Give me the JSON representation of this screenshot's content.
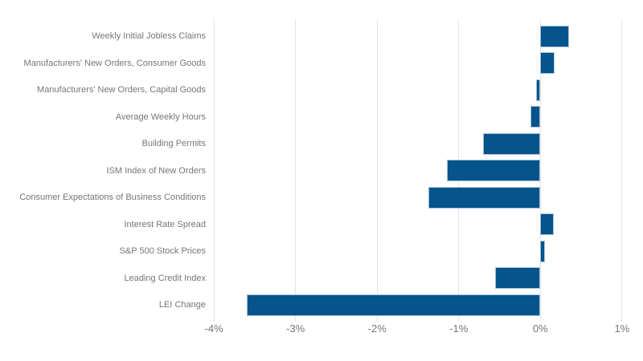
{
  "chart_data": {
    "type": "bar",
    "orientation": "horizontal",
    "title": "",
    "categories": [
      "Weekly Initial Jobless Claims",
      "Manufacturers' New Orders, Consumer Goods",
      "Manufacturers' New Orders, Capital Goods",
      "Average Weekly Hours",
      "Building Permits",
      "ISM Index of New Orders",
      "Consumer Expectations of Business Conditions",
      "Interest Rate Spread",
      "S&P 500 Stock Prices",
      "Leading Credit Index",
      "LEI Change"
    ],
    "values": [
      0.35,
      0.17,
      -0.05,
      -0.12,
      -0.7,
      -1.15,
      -1.37,
      0.16,
      0.06,
      -0.55,
      -3.6
    ],
    "unit": "%",
    "x_ticks": [
      {
        "value": -4,
        "label": "-4%"
      },
      {
        "value": -3,
        "label": "-3%"
      },
      {
        "value": -2,
        "label": "-2%"
      },
      {
        "value": -1,
        "label": "-1%"
      },
      {
        "value": 0,
        "label": "0%"
      },
      {
        "value": 1,
        "label": "1%"
      }
    ],
    "xlim": [
      -4.1,
      1.1
    ],
    "grid": true,
    "legend": "none",
    "colors": {
      "bar_fill": "#05548c",
      "bar_border": "#aac3d9",
      "gridline": "#e2e2e2",
      "text": "#767676",
      "background": "#ffffff"
    }
  }
}
